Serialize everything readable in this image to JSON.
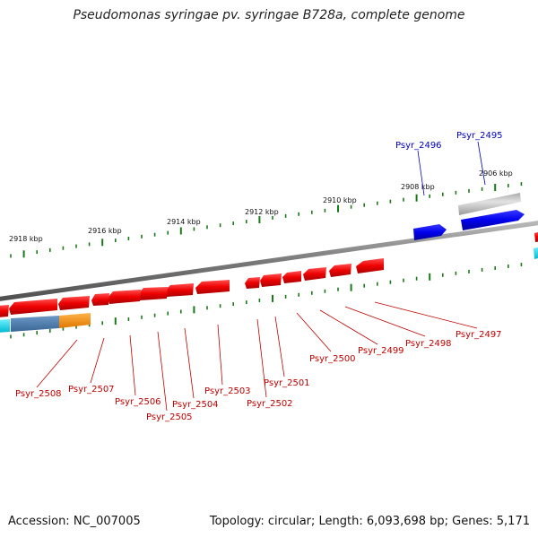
{
  "title": "Pseudomonas syringae pv. syringae B728a, complete genome",
  "footer": {
    "accession": "Accession: NC_007005",
    "stats": "Topology: circular; Length: 6,093,698 bp; Genes: 5,171"
  },
  "scale_ticks": [
    {
      "label": "2918 kbp",
      "kbp": 2918
    },
    {
      "label": "2916 kbp",
      "kbp": 2916
    },
    {
      "label": "2914 kbp",
      "kbp": 2914
    },
    {
      "label": "2912 kbp",
      "kbp": 2912
    },
    {
      "label": "2910 kbp",
      "kbp": 2910
    },
    {
      "label": "2908 kbp",
      "kbp": 2908
    },
    {
      "label": "2906 kbp",
      "kbp": 2906
    }
  ],
  "colors": {
    "reverse_gene": "#e00000",
    "forward_gene": "#0000e0",
    "backbone": "#808080",
    "tick": "#1a7a1a",
    "label_red": "#c00000",
    "label_blue": "#0000c0"
  },
  "labels": {
    "top": [
      "Psyr_2496",
      "Psyr_2495"
    ],
    "bottom": [
      "Psyr_2508",
      "Psyr_2507",
      "Psyr_2506",
      "Psyr_2505",
      "Psyr_2504",
      "Psyr_2503",
      "Psyr_2502",
      "Psyr_2501",
      "Psyr_2500",
      "Psyr_2499",
      "Psyr_2498",
      "Psyr_2497"
    ]
  }
}
